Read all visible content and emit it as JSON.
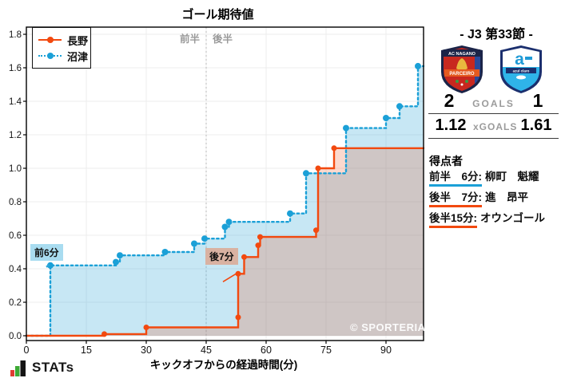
{
  "chart": {
    "title": "ゴール期待値",
    "xlabel": "キックオフからの経過時間(分)",
    "half_label_first": "前半",
    "half_label_second": "後半",
    "watermark": "© SPORTERIA"
  },
  "chart_data": {
    "type": "line",
    "subtype": "step-post",
    "title": "ゴール期待値",
    "xlabel": "キックオフからの経過時間(分)",
    "ylabel": "",
    "xlim": [
      0,
      99.4
    ],
    "ylim": [
      0,
      1.8
    ],
    "xticks": [
      0,
      15,
      30,
      45,
      60,
      75,
      90
    ],
    "yticks": [
      0.0,
      0.2,
      0.4,
      0.6,
      0.8,
      1.0,
      1.2,
      1.4,
      1.6,
      1.8
    ],
    "grid": true,
    "legend_position": "top-left",
    "halftime_x": 45,
    "series": [
      {
        "name": "長野",
        "color": "#f2490f",
        "fill": "rgba(238,84,30,0.22)",
        "style": "solid",
        "final_value": 1.12,
        "points": [
          [
            0,
            0
          ],
          [
            19.5,
            0.01
          ],
          [
            30,
            0.05
          ],
          [
            53,
            0.11
          ],
          [
            53,
            0.37
          ],
          [
            54.5,
            0.47
          ],
          [
            58,
            0.54
          ],
          [
            58.5,
            0.59
          ],
          [
            72.5,
            0.63
          ],
          [
            73,
            1.0
          ],
          [
            77,
            1.12
          ]
        ]
      },
      {
        "name": "沼津",
        "color": "#1ba0d7",
        "fill": "rgba(70,175,220,0.30)",
        "style": "dotted",
        "final_value": 1.61,
        "points": [
          [
            0,
            0
          ],
          [
            6,
            0.42
          ],
          [
            22.4,
            0.44
          ],
          [
            23.4,
            0.48
          ],
          [
            34.7,
            0.5
          ],
          [
            42,
            0.55
          ],
          [
            44.6,
            0.58
          ],
          [
            49.7,
            0.65
          ],
          [
            50.7,
            0.68
          ],
          [
            66,
            0.73
          ],
          [
            70,
            0.97
          ],
          [
            80,
            1.24
          ],
          [
            90,
            1.3
          ],
          [
            93.4,
            1.37
          ],
          [
            98,
            1.61
          ]
        ]
      }
    ],
    "annotations": [
      {
        "label": "前6分",
        "x": 6,
        "y": 0.42,
        "box_color": "#a9dcf0",
        "line_color": "#2ea6d8"
      },
      {
        "label": "後7分",
        "x": 53,
        "y": 0.37,
        "box_color": "#d9b2a2",
        "line_color": "#f2490f"
      }
    ]
  },
  "sidebar": {
    "header": "- J3 第33節 -",
    "goals_label": "GOALS",
    "xgoals_label": "xGOALS",
    "home": {
      "goals": "2",
      "xgoals": "1.12",
      "logo_line1": "AC NAGANO",
      "logo_line2": "PARCEIRO"
    },
    "away": {
      "goals": "1",
      "xgoals": "1.61",
      "logo_text": "azul claro"
    },
    "scorers_title": "得点者",
    "scorers": [
      {
        "time": "前半　6分:",
        "name": "柳町　魁耀",
        "color": "#1ba0d7"
      },
      {
        "time": "後半　7分:",
        "name": "進　昂平",
        "color": "#f2490f"
      },
      {
        "time": "後半15分:",
        "name": "オウンゴール",
        "color": "#f2490f"
      }
    ]
  },
  "footer": {
    "brand": "STATs"
  }
}
